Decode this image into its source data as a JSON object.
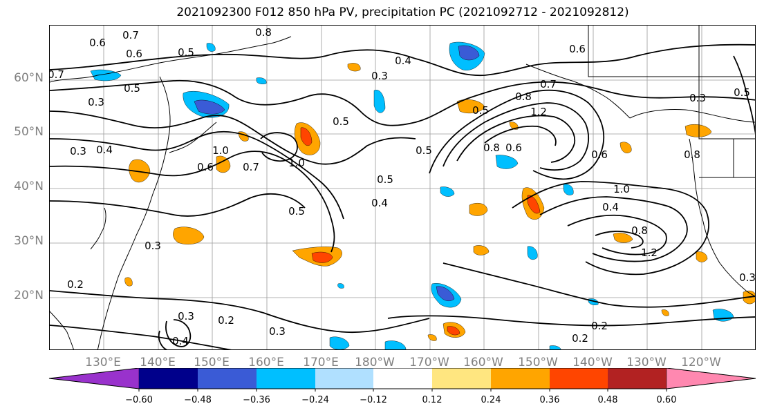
{
  "title": "2021092300 F012 850 hPa PV, precipitation PC (2021092712 - 2021092812)",
  "lat_labels": [
    "60°N",
    "50°N",
    "40°N",
    "30°N",
    "20°N"
  ],
  "lon_labels": [
    "130°E",
    "140°E",
    "150°E",
    "160°E",
    "170°E",
    "180°W",
    "170°W",
    "160°W",
    "150°W",
    "140°W",
    "130°W",
    "120°W"
  ],
  "contour_labels": [
    "0.7",
    "0.6",
    "0.5",
    "0.8",
    "0.7",
    "0.6",
    "0.4",
    "0.3",
    "0.5",
    "0.3",
    "0.4",
    "0.3",
    "0.6",
    "1.0",
    "0.7",
    "1.0",
    "0.5",
    "0.5",
    "0.3",
    "0.5",
    "0.4",
    "0.5",
    "0.3",
    "0.2",
    "0.3",
    "0.2",
    "0.4",
    "0.5",
    "0.8",
    "0.6",
    "1.2",
    "0.8",
    "0.7",
    "0.6",
    "0.3",
    "0.5",
    "0.6",
    "0.8",
    "1.0",
    "0.4",
    "0.8",
    "1.2",
    "0.2",
    "0.2",
    "0.3"
  ],
  "colorbar": {
    "ticks": [
      "−0.60",
      "−0.48",
      "−0.36",
      "−0.24",
      "−0.12",
      "0.12",
      "0.24",
      "0.36",
      "0.48",
      "0.60"
    ],
    "colors": [
      "#9932cc",
      "#00008b",
      "#3a5bd6",
      "#00bfff",
      "#b0e0ff",
      "#ffffff",
      "#ffe680",
      "#ffa500",
      "#ff4500",
      "#b22222",
      "#ff88b0"
    ]
  }
}
